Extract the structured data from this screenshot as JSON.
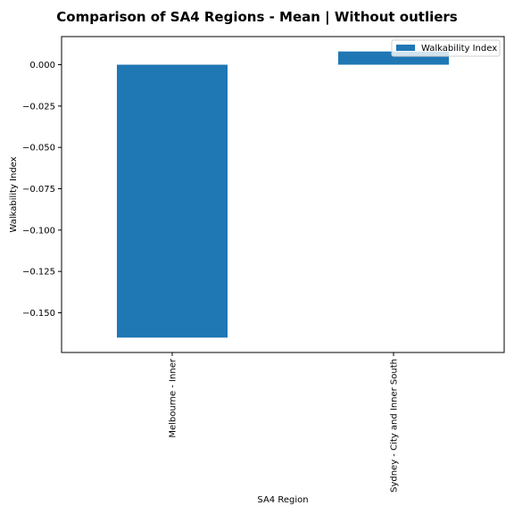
{
  "chart_data": {
    "type": "bar",
    "title": "Comparison of SA4 Regions - Mean | Without outliers",
    "xlabel": "SA4 Region",
    "ylabel": "Walkability Index",
    "categories": [
      "Melbourne - Inner",
      "Sydney - City and Inner South"
    ],
    "series": [
      {
        "name": "Walkability Index",
        "values": [
          -0.165,
          0.008
        ],
        "color": "#1f77b4"
      }
    ],
    "ylim": [
      -0.174,
      0.017
    ],
    "yticks": [
      0.0,
      -0.025,
      -0.05,
      -0.075,
      -0.1,
      -0.125,
      -0.15
    ],
    "ytick_labels": [
      "0.000",
      "−0.025",
      "−0.050",
      "−0.075",
      "−0.100",
      "−0.125",
      "−0.150"
    ],
    "grid": false,
    "legend_position": "top-right"
  }
}
